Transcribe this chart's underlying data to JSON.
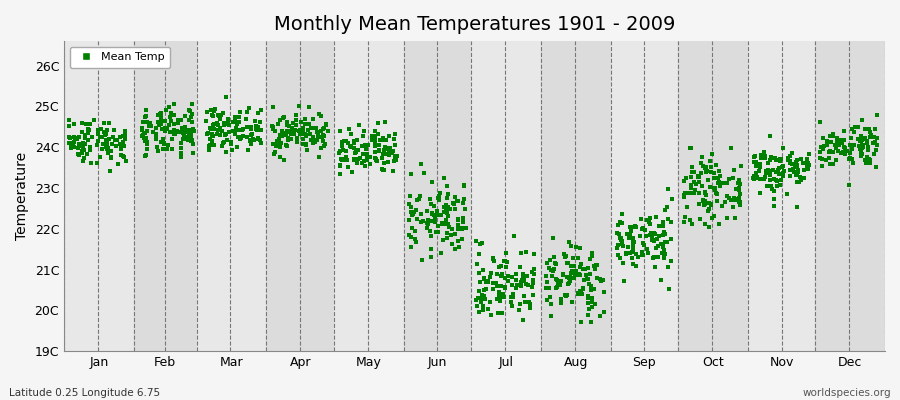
{
  "title": "Monthly Mean Temperatures 1901 - 2009",
  "ylabel": "Temperature",
  "bottom_left_label": "Latitude 0.25 Longitude 6.75",
  "bottom_right_label": "worldspecies.org",
  "legend_label": "Mean Temp",
  "marker_color": "#008000",
  "background_color": "#f0f0f0",
  "band_color_light": "#e8e8e8",
  "band_color_dark": "#d8d8d8",
  "ylim": [
    19.0,
    26.6
  ],
  "ytick_labels": [
    "19C",
    "20C",
    "21C",
    "22C",
    "23C",
    "24C",
    "25C",
    "26C"
  ],
  "ytick_values": [
    19,
    20,
    21,
    22,
    23,
    24,
    25,
    26
  ],
  "month_names": [
    "Jan",
    "Feb",
    "Mar",
    "Apr",
    "May",
    "Jun",
    "Jul",
    "Aug",
    "Sep",
    "Oct",
    "Nov",
    "Dec"
  ],
  "mean_temps": [
    24.15,
    24.35,
    24.45,
    24.35,
    23.85,
    22.25,
    20.65,
    20.75,
    21.7,
    22.95,
    23.45,
    24.05
  ],
  "std_temps": [
    0.28,
    0.3,
    0.25,
    0.25,
    0.3,
    0.45,
    0.45,
    0.45,
    0.4,
    0.38,
    0.3,
    0.28
  ],
  "n_years": 109,
  "seed": 42,
  "title_fontsize": 14,
  "label_fontsize": 9,
  "ylabel_fontsize": 10
}
